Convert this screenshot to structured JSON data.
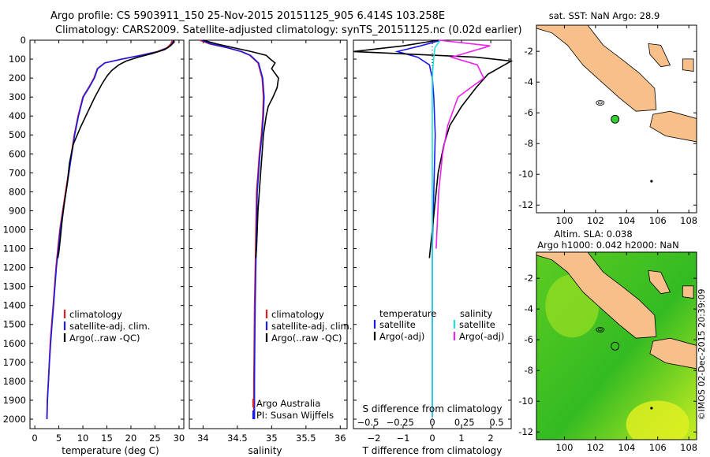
{
  "header": {
    "line1": "Argo profile: CS 5903911_150 25-Nov-2015 20151125_905 6.414S 103.258E",
    "line2": "Climatology: CARS2009. Satellite-adjusted climatology: synTS_20151125.nc (0.02d earlier)"
  },
  "colors": {
    "climatology": "#e02020",
    "satellite": "#1a1aee",
    "argo": "#000000",
    "sal_satellite": "#22dddd",
    "sal_argo": "#ee22ee",
    "land": "#f7c08a",
    "float_marker": "#33cc33"
  },
  "depth_axis": {
    "ylim": [
      0,
      2050
    ],
    "ticks": [
      0,
      100,
      200,
      300,
      400,
      500,
      600,
      700,
      800,
      900,
      1000,
      1100,
      1200,
      1300,
      1400,
      1500,
      1600,
      1700,
      1800,
      1900,
      2000
    ],
    "tick_labels": [
      "0",
      "100",
      "200",
      "300",
      "400",
      "500",
      "600",
      "700",
      "800",
      "900",
      "1000",
      "1100",
      "1200",
      "1300",
      "1400",
      "1500",
      "1600",
      "1700",
      "1800",
      "1900",
      "2000"
    ]
  },
  "chart_data": [
    {
      "type": "line",
      "panel": "temperature",
      "xlabel": "temperature (deg C)",
      "xlim": [
        -1,
        31
      ],
      "x_ticks": [
        0,
        5,
        10,
        15,
        20,
        25,
        30
      ],
      "x_tick_labels": [
        "0",
        "5",
        "10",
        "15",
        "20",
        "25",
        "30"
      ],
      "legend": {
        "placement": "lower-center",
        "entries": [
          "climatology",
          "satellite-adj. clim.",
          "Argo(..raw -QC)"
        ]
      },
      "series": [
        {
          "name": "climatology",
          "color": "#e02020",
          "x": [
            28.6,
            28.3,
            27.5,
            25.5,
            22,
            18,
            14.5,
            13,
            12.3,
            11.2,
            10,
            9,
            8.2,
            7.6,
            7,
            6.4,
            5.8,
            5.2,
            4.8,
            4.4,
            4.1,
            3.8,
            3.5,
            3.2,
            3.0,
            2.8,
            2.6,
            2.5
          ],
          "y": [
            0,
            20,
            40,
            60,
            80,
            100,
            120,
            150,
            200,
            250,
            300,
            400,
            500,
            600,
            700,
            800,
            900,
            1000,
            1100,
            1200,
            1300,
            1400,
            1500,
            1600,
            1700,
            1800,
            1900,
            2000
          ]
        },
        {
          "name": "satellite-adj. clim.",
          "color": "#1a1aee",
          "x": [
            28.9,
            28.5,
            27.7,
            25.7,
            22.2,
            18.2,
            14.6,
            13.1,
            12.4,
            11.3,
            10.1,
            9.1,
            8.3,
            7.7,
            7.1,
            6.5,
            5.9,
            5.3,
            4.9,
            4.5,
            4.2,
            3.9,
            3.6,
            3.3,
            3.05,
            2.85,
            2.65,
            2.55
          ],
          "y": [
            0,
            20,
            40,
            60,
            80,
            100,
            120,
            150,
            200,
            250,
            300,
            400,
            500,
            600,
            700,
            800,
            900,
            1000,
            1100,
            1200,
            1300,
            1400,
            1500,
            1600,
            1700,
            1800,
            1900,
            2000
          ]
        },
        {
          "name": "Argo(..raw -QC)",
          "color": "#000000",
          "x": [
            28.9,
            29.0,
            28.2,
            27.0,
            24.5,
            21.5,
            19.0,
            17.5,
            16.0,
            15.0,
            14.0,
            12.5,
            11.0,
            9.5,
            8.0,
            7.2,
            6.8,
            6.2,
            5.7,
            5.3,
            5.0,
            4.8
          ],
          "y": [
            0,
            10,
            30,
            50,
            70,
            90,
            110,
            130,
            160,
            190,
            230,
            300,
            380,
            460,
            550,
            650,
            750,
            850,
            950,
            1050,
            1120,
            1150
          ]
        }
      ]
    },
    {
      "type": "line",
      "panel": "salinity",
      "xlabel": "salinity",
      "xlim": [
        33.8,
        36.1
      ],
      "x_ticks": [
        34,
        34.5,
        35,
        35.5,
        36
      ],
      "x_tick_labels": [
        "34",
        "34.5",
        "35",
        "35.5",
        "36"
      ],
      "legend": {
        "placement": "lower-center",
        "entries": [
          "climatology",
          "satellite-adj. clim.",
          "Argo(..raw -QC)"
        ]
      },
      "annotations": [
        "Argo Australia",
        "PI: Susan Wijffels"
      ],
      "series": [
        {
          "name": "climatology",
          "color": "#e02020",
          "x": [
            33.95,
            34.1,
            34.35,
            34.55,
            34.68,
            34.8,
            34.86,
            34.88,
            34.87,
            34.85,
            34.82,
            34.8,
            34.78,
            34.77,
            34.76,
            34.75,
            34.745,
            34.74,
            34.74
          ],
          "y": [
            0,
            20,
            40,
            60,
            80,
            120,
            200,
            300,
            400,
            500,
            600,
            700,
            800,
            1000,
            1200,
            1400,
            1600,
            1800,
            2000
          ]
        },
        {
          "name": "satellite-adj. clim.",
          "color": "#1a1aee",
          "x": [
            33.98,
            34.12,
            34.36,
            34.56,
            34.69,
            34.81,
            34.87,
            34.89,
            34.88,
            34.86,
            34.83,
            34.81,
            34.79,
            34.78,
            34.77,
            34.76,
            34.755,
            34.75,
            34.75
          ],
          "y": [
            0,
            20,
            40,
            60,
            80,
            120,
            200,
            300,
            400,
            500,
            600,
            700,
            800,
            1000,
            1200,
            1400,
            1600,
            1800,
            2000
          ]
        },
        {
          "name": "Argo(..raw -QC)",
          "color": "#000000",
          "x": [
            34.0,
            34.2,
            34.45,
            34.7,
            34.92,
            34.98,
            35.05,
            35.0,
            35.1,
            35.08,
            35.02,
            34.95,
            34.92,
            34.88,
            34.86,
            34.84,
            34.82,
            34.8,
            34.79,
            34.78,
            34.77
          ],
          "y": [
            0,
            20,
            40,
            60,
            80,
            100,
            120,
            150,
            200,
            250,
            300,
            350,
            400,
            500,
            600,
            700,
            800,
            900,
            1000,
            1100,
            1150
          ]
        }
      ]
    },
    {
      "type": "line",
      "panel": "difference",
      "xlabel": "T difference from climatology",
      "xlabel_top": "S difference from climatology",
      "xlim": [
        -2.7,
        2.7
      ],
      "x_ticks": [
        -2,
        -1,
        0,
        1,
        2
      ],
      "x_tick_labels": [
        "−2",
        "−1",
        "0",
        "1",
        "2"
      ],
      "s_ticks": [
        -0.5,
        -0.25,
        0,
        0.25,
        0.5
      ],
      "s_tick_labels": [
        "−0.5",
        "−0.25",
        "0",
        "0.25",
        "0.5"
      ],
      "legend": {
        "placement": "lower-center",
        "temperature_header": "temperature",
        "salinity_header": "salinity",
        "entries": [
          "satellite",
          "Argo(-adj)",
          "satellite",
          "Argo(-adj)"
        ]
      },
      "series": [
        {
          "name": "temperature satellite",
          "color": "#1a1aee",
          "quantity": "T",
          "x": [
            0.3,
            -0.4,
            -1.2,
            -0.5,
            -0.1,
            0.0,
            0.05,
            0.1,
            0.05,
            0.0,
            0.0,
            0.0,
            0.0,
            0.0
          ],
          "y": [
            0,
            30,
            60,
            90,
            130,
            200,
            300,
            500,
            800,
            1100,
            1400,
            1700,
            1900,
            1990
          ]
        },
        {
          "name": "temperature Argo(-adj)",
          "color": "#000000",
          "quantity": "T",
          "x": [
            0.2,
            -1.0,
            -2.7,
            1.5,
            2.7,
            1.9,
            1.5,
            1.0,
            0.6,
            0.4,
            0.2,
            0.1,
            0.0,
            -0.1
          ],
          "y": [
            0,
            30,
            60,
            90,
            110,
            180,
            250,
            350,
            450,
            550,
            700,
            850,
            1000,
            1150
          ]
        },
        {
          "name": "salinity satellite",
          "color": "#22dddd",
          "quantity": "S",
          "x": [
            0.06,
            0.02,
            0.01,
            0.0,
            0.0,
            0.0,
            0.0,
            0.0,
            0.0,
            0.0
          ],
          "y": [
            0,
            40,
            100,
            200,
            400,
            800,
            1200,
            1600,
            1900,
            1990
          ]
        },
        {
          "name": "salinity Argo(-adj)",
          "color": "#ee22ee",
          "quantity": "S",
          "x": [
            0.05,
            0.45,
            0.3,
            0.15,
            0.35,
            0.4,
            0.2,
            0.12,
            0.08,
            0.05,
            0.03
          ],
          "y": [
            0,
            30,
            60,
            90,
            130,
            200,
            300,
            450,
            600,
            800,
            1100
          ]
        }
      ]
    }
  ],
  "maps": {
    "top": {
      "title": "sat. SST: NaN Argo: 28.9",
      "x_ticks": [
        100,
        102,
        104,
        106,
        108
      ],
      "y_ticks": [
        -2,
        -4,
        -6,
        -8,
        -10,
        -12
      ],
      "lon_range": [
        98.2,
        108.5
      ],
      "lat_range": [
        -12.5,
        -0.3
      ]
    },
    "bottom": {
      "title_line1": "Altim. SLA: 0.038",
      "title_line2": "Argo h1000: 0.042 h2000: NaN",
      "x_ticks": [
        100,
        102,
        104,
        106,
        108
      ],
      "y_ticks": [
        -2,
        -4,
        -6,
        -8,
        -10,
        -12
      ],
      "lon_range": [
        98.2,
        108.5
      ],
      "lat_range": [
        -12.5,
        -0.3
      ]
    },
    "float_position": {
      "lon": 103.258,
      "lat": -6.414
    },
    "credit": "©IMOS 02-Dec-2015 20:39:09"
  }
}
